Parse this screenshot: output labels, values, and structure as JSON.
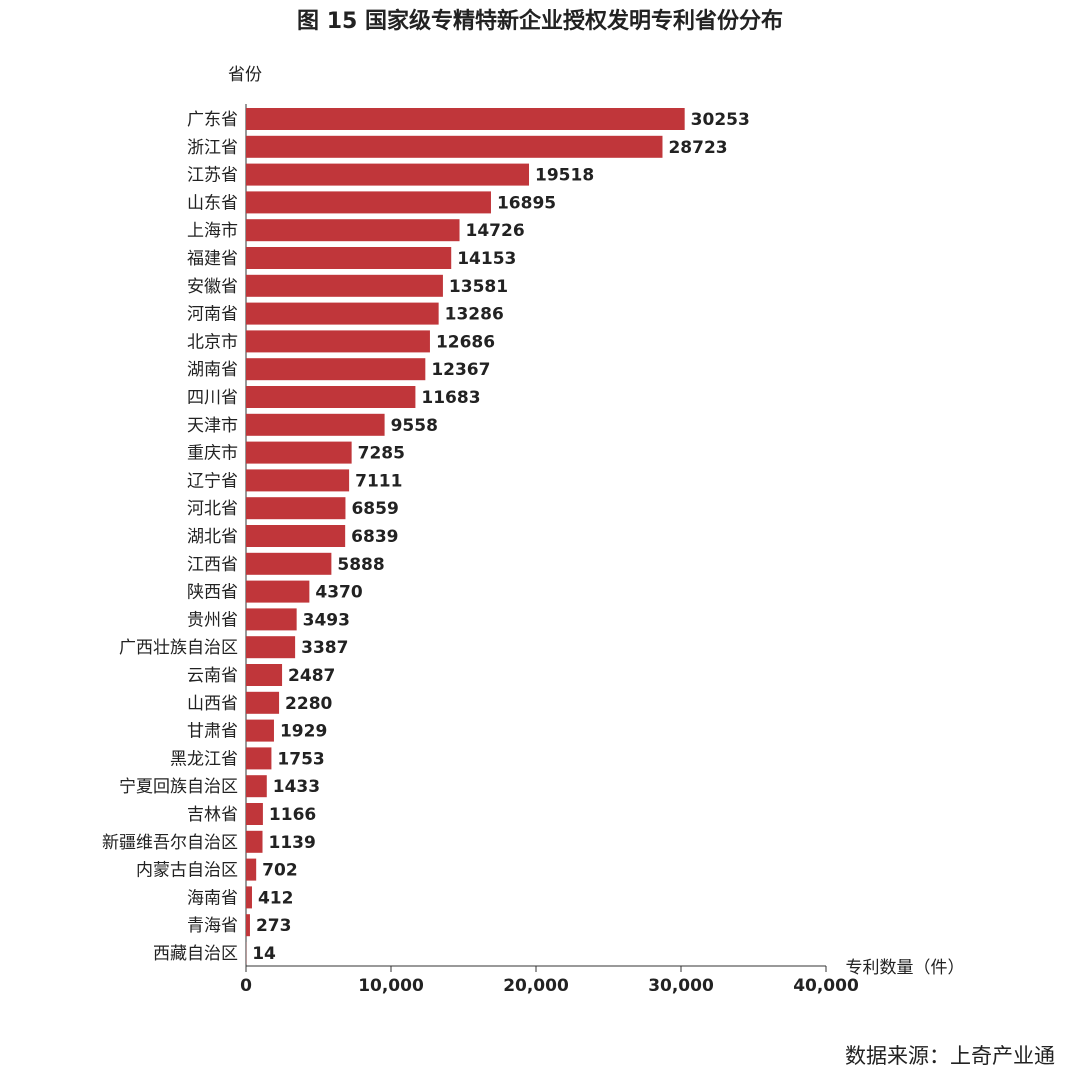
{
  "chart_data": {
    "type": "barh",
    "title": "图 15  国家级专精特新企业授权发明专利省份分布",
    "y_label": "省份",
    "x_label": "专利数量（件）",
    "source": "数据来源：上奇产业通",
    "categories": [
      "广东省",
      "浙江省",
      "江苏省",
      "山东省",
      "上海市",
      "福建省",
      "安徽省",
      "河南省",
      "北京市",
      "湖南省",
      "四川省",
      "天津市",
      "重庆市",
      "辽宁省",
      "河北省",
      "湖北省",
      "江西省",
      "陕西省",
      "贵州省",
      "广西壮族自治区",
      "云南省",
      "山西省",
      "甘肃省",
      "黑龙江省",
      "宁夏回族自治区",
      "吉林省",
      "新疆维吾尔自治区",
      "内蒙古自治区",
      "海南省",
      "青海省",
      "西藏自治区"
    ],
    "values": [
      30253,
      28723,
      19518,
      16895,
      14726,
      14153,
      13581,
      13286,
      12686,
      12367,
      11683,
      9558,
      7285,
      7111,
      6859,
      6839,
      5888,
      4370,
      3493,
      3387,
      2487,
      2280,
      1929,
      1753,
      1433,
      1166,
      1139,
      702,
      412,
      273,
      14
    ],
    "color": "#c0363a",
    "xlim": [
      0,
      40000
    ],
    "xticks": [
      0,
      {
        "value": 10000,
        "label": "10,000"
      },
      {
        "value": 20000,
        "label": "20,000"
      },
      {
        "value": 30000,
        "label": "30,000"
      },
      {
        "value": 40000,
        "label": "40,000"
      }
    ],
    "grid": false
  }
}
